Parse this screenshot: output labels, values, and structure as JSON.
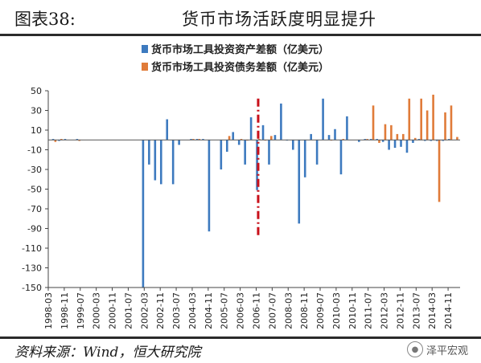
{
  "figure": {
    "number": "图表38:",
    "title": "货币市场活跃度明显提升",
    "source": "资料来源：Wind，恒大研究院",
    "badge_text": "泽平宏观",
    "badge_icon": "wechat-icon"
  },
  "chart_data": {
    "type": "bar",
    "ylim": [
      -150,
      50
    ],
    "yticks": [
      50,
      30,
      10,
      -10,
      -30,
      -50,
      -70,
      -90,
      -110,
      -130,
      -150
    ],
    "start": "1998-03",
    "xtick_labels": [
      "1998-03",
      "1998-11",
      "1999-07",
      "2000-03",
      "2000-11",
      "2001-07",
      "2002-03",
      "2002-11",
      "2003-07",
      "2004-03",
      "2004-11",
      "2005-07",
      "2006-03",
      "2006-11",
      "2007-07",
      "2008-03",
      "2008-11",
      "2009-07",
      "2010-03",
      "2010-11",
      "2011-07",
      "2012-03",
      "2012-11",
      "2013-07",
      "2014-03",
      "2014-11"
    ],
    "marker_date": "2006-12",
    "legend_position": "top-center",
    "series": [
      {
        "name": "货币市场工具投资资产差额（亿美元）",
        "color": "#3d7abf",
        "points": [
          [
            "1998-06",
            1
          ],
          [
            "1998-09",
            -1
          ],
          [
            "1998-12",
            1
          ],
          [
            "1999-06",
            1
          ],
          [
            "2002-03",
            -150
          ],
          [
            "2002-06",
            -25
          ],
          [
            "2002-09",
            -41
          ],
          [
            "2002-12",
            -45
          ],
          [
            "2003-03",
            21
          ],
          [
            "2003-06",
            -45
          ],
          [
            "2003-09",
            -5
          ],
          [
            "2004-03",
            1
          ],
          [
            "2004-06",
            1
          ],
          [
            "2004-09",
            1
          ],
          [
            "2004-12",
            -93
          ],
          [
            "2005-06",
            -30
          ],
          [
            "2005-09",
            -12
          ],
          [
            "2005-12",
            8
          ],
          [
            "2006-03",
            -5
          ],
          [
            "2006-06",
            -25
          ],
          [
            "2006-09",
            23
          ],
          [
            "2006-12",
            -51
          ],
          [
            "2007-03",
            15
          ],
          [
            "2007-06",
            -25
          ],
          [
            "2007-09",
            5
          ],
          [
            "2007-12",
            37
          ],
          [
            "2008-03",
            0
          ],
          [
            "2008-06",
            -10
          ],
          [
            "2008-09",
            -85
          ],
          [
            "2008-12",
            -38
          ],
          [
            "2009-03",
            6
          ],
          [
            "2009-06",
            -25
          ],
          [
            "2009-09",
            42
          ],
          [
            "2009-12",
            5
          ],
          [
            "2010-03",
            11
          ],
          [
            "2010-06",
            -35
          ],
          [
            "2010-09",
            24
          ],
          [
            "2011-03",
            -2
          ],
          [
            "2011-06",
            1
          ],
          [
            "2011-09",
            1
          ],
          [
            "2011-12",
            1
          ],
          [
            "2012-03",
            -2
          ],
          [
            "2012-06",
            -10
          ],
          [
            "2012-09",
            -8
          ],
          [
            "2012-12",
            -7
          ],
          [
            "2013-03",
            -13
          ],
          [
            "2013-06",
            -3
          ],
          [
            "2013-09",
            1
          ],
          [
            "2013-12",
            -1
          ],
          [
            "2014-03",
            -1
          ],
          [
            "2014-06",
            -1
          ],
          [
            "2014-09",
            -1
          ],
          [
            "2014-12",
            1
          ]
        ]
      },
      {
        "name": "货币市场工具投资债务差额（亿美元）",
        "color": "#e07b39",
        "points": [
          [
            "1998-06",
            -2
          ],
          [
            "1998-09",
            1
          ],
          [
            "1999-06",
            -1
          ],
          [
            "2004-03",
            1
          ],
          [
            "2004-06",
            1
          ],
          [
            "2005-09",
            4
          ],
          [
            "2006-03",
            1
          ],
          [
            "2006-06",
            0
          ],
          [
            "2006-12",
            1
          ],
          [
            "2007-03",
            0
          ],
          [
            "2007-06",
            4
          ],
          [
            "2009-12",
            0
          ],
          [
            "2010-06",
            1
          ],
          [
            "2011-06",
            1
          ],
          [
            "2011-09",
            35
          ],
          [
            "2011-12",
            -3
          ],
          [
            "2012-03",
            16
          ],
          [
            "2012-06",
            15
          ],
          [
            "2012-09",
            6
          ],
          [
            "2012-12",
            6
          ],
          [
            "2013-03",
            42
          ],
          [
            "2013-06",
            2
          ],
          [
            "2013-09",
            42
          ],
          [
            "2013-12",
            30
          ],
          [
            "2014-03",
            46
          ],
          [
            "2014-06",
            -63
          ],
          [
            "2014-09",
            28
          ],
          [
            "2014-12",
            35
          ],
          [
            "2015-03",
            3
          ]
        ]
      }
    ]
  }
}
